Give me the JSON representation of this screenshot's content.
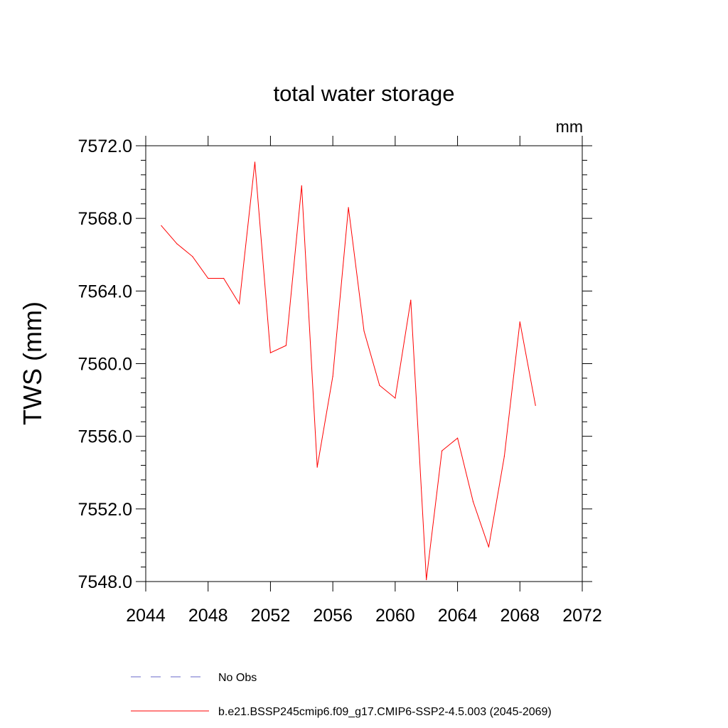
{
  "chart_data": {
    "type": "line",
    "title": "total water storage",
    "units_label": "mm",
    "xlabel": "",
    "ylabel": "TWS  (mm)",
    "xlim": [
      2044,
      2072
    ],
    "ylim": [
      7548.0,
      7572.0
    ],
    "x_ticks": [
      "2044",
      "2048",
      "2052",
      "2056",
      "2060",
      "2064",
      "2068",
      "2072"
    ],
    "y_ticks": [
      "7548.0",
      "7552.0",
      "7556.0",
      "7560.0",
      "7564.0",
      "7568.0",
      "7572.0"
    ],
    "grid": false,
    "series": [
      {
        "name": "b.e21.BSSP245cmip6.f09_g17.CMIP6-SSP2-4.5.003 (2045-2069)",
        "color": "#ff0000",
        "style": "solid",
        "x": [
          2045,
          2046,
          2047,
          2048,
          2049,
          2050,
          2051,
          2052,
          2053,
          2054,
          2055,
          2056,
          2057,
          2058,
          2059,
          2060,
          2061,
          2062,
          2063,
          2064,
          2065,
          2066,
          2067,
          2068,
          2069
        ],
        "values": [
          7567.6,
          7566.6,
          7565.9,
          7564.7,
          7564.7,
          7563.3,
          7571.1,
          7560.6,
          7561.0,
          7569.8,
          7554.3,
          7559.3,
          7568.6,
          7561.8,
          7558.8,
          7558.1,
          7563.5,
          7548.1,
          7555.2,
          7555.9,
          7552.4,
          7549.9,
          7554.9,
          7562.3,
          7557.7
        ]
      }
    ],
    "legend": [
      {
        "label": "No Obs",
        "color": "#6a6ac8",
        "style": "dashed"
      },
      {
        "label": "b.e21.BSSP245cmip6.f09_g17.CMIP6-SSP2-4.5.003 (2045-2069)",
        "color": "#ff0000",
        "style": "solid"
      }
    ]
  }
}
